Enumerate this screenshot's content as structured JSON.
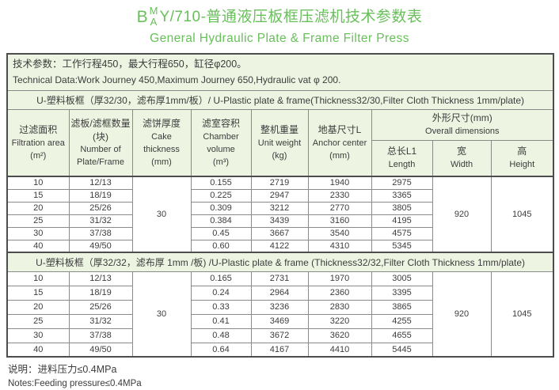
{
  "title": {
    "prefix": "B",
    "stack_top": "M",
    "stack_bottom": "A",
    "main": "Y/710-普通液压板框压滤机技术参数表",
    "subtitle": "General Hydraulic Plate & Frame Filter Press"
  },
  "tech_box": {
    "line_cn": "技术参数：工作行程450，最大行程650，缸径φ200。",
    "line_en": "Technical Data:Work Journey 450,Maximum Journey 650,Hydraulic vat φ 200."
  },
  "columns": [
    {
      "cn": "过滤面积",
      "en": "Filtration area",
      "unit": "(m²)"
    },
    {
      "cn": "滤板/滤框数量(块)",
      "en": "Number of Plate/Frame",
      "unit": ""
    },
    {
      "cn": "滤饼厚度",
      "en": "Cake thickness",
      "unit": "(mm)"
    },
    {
      "cn": "滤室容积",
      "en": "Chamber volume",
      "unit": "(m³)"
    },
    {
      "cn": "整机重量",
      "en": "Unit weight",
      "unit": "(kg)"
    },
    {
      "cn": "地基尺寸L",
      "en": "Anchor center",
      "unit": "(mm)"
    }
  ],
  "overall": {
    "cn": "外形尺寸(mm)",
    "en": "Overall dimensions",
    "subs": [
      {
        "cn": "总长L1",
        "en": "Length"
      },
      {
        "cn": "宽",
        "en": "Width"
      },
      {
        "cn": "高",
        "en": "Height"
      }
    ]
  },
  "sections": [
    {
      "header": "U-塑料板框（厚32/30，滤布厚1mm/板）/ U-Plastic plate & frame(Thickness32/30,Filter Cloth Thickness 1mm/plate)",
      "cake_thickness": "30",
      "width": "920",
      "height": "1045",
      "rows": [
        [
          "10",
          "12/13",
          "0.155",
          "2719",
          "1940",
          "2975"
        ],
        [
          "15",
          "18/19",
          "0.225",
          "2947",
          "2330",
          "3365"
        ],
        [
          "20",
          "25/26",
          "0.309",
          "3212",
          "2770",
          "3805"
        ],
        [
          "25",
          "31/32",
          "0.384",
          "3439",
          "3160",
          "4195"
        ],
        [
          "30",
          "37/38",
          "0.45",
          "3667",
          "3540",
          "4575"
        ],
        [
          "40",
          "49/50",
          "0.60",
          "4122",
          "4310",
          "5345"
        ]
      ]
    },
    {
      "header": "U-塑料板框（厚32/32，滤布厚 1mm /板) /U-Plastic plate & frame (Thickness32/32,Filter Cloth Thickness 1mm/plate)",
      "cake_thickness": "30",
      "width": "920",
      "height": "1045",
      "rows": [
        [
          "10",
          "12/13",
          "0.165",
          "2731",
          "1970",
          "3005"
        ],
        [
          "15",
          "18/19",
          "0.24",
          "2964",
          "2360",
          "3395"
        ],
        [
          "20",
          "25/26",
          "0.33",
          "3236",
          "2830",
          "3865"
        ],
        [
          "25",
          "31/32",
          "0.41",
          "3469",
          "3220",
          "4255"
        ],
        [
          "30",
          "37/38",
          "0.48",
          "3672",
          "3620",
          "4655"
        ],
        [
          "40",
          "49/50",
          "0.64",
          "4167",
          "4410",
          "5445"
        ]
      ]
    }
  ],
  "notes": {
    "cn": "说明：进料压力≤0.4MPa",
    "en": "Notes:Feeding pressure≤0.4MPa"
  },
  "colors": {
    "accent_green": "#68c05a",
    "header_bg": "#edf5e2",
    "inner_border": "#8a8a8a",
    "outer_border": "#4d4d4d",
    "text": "#3c3c3c"
  }
}
